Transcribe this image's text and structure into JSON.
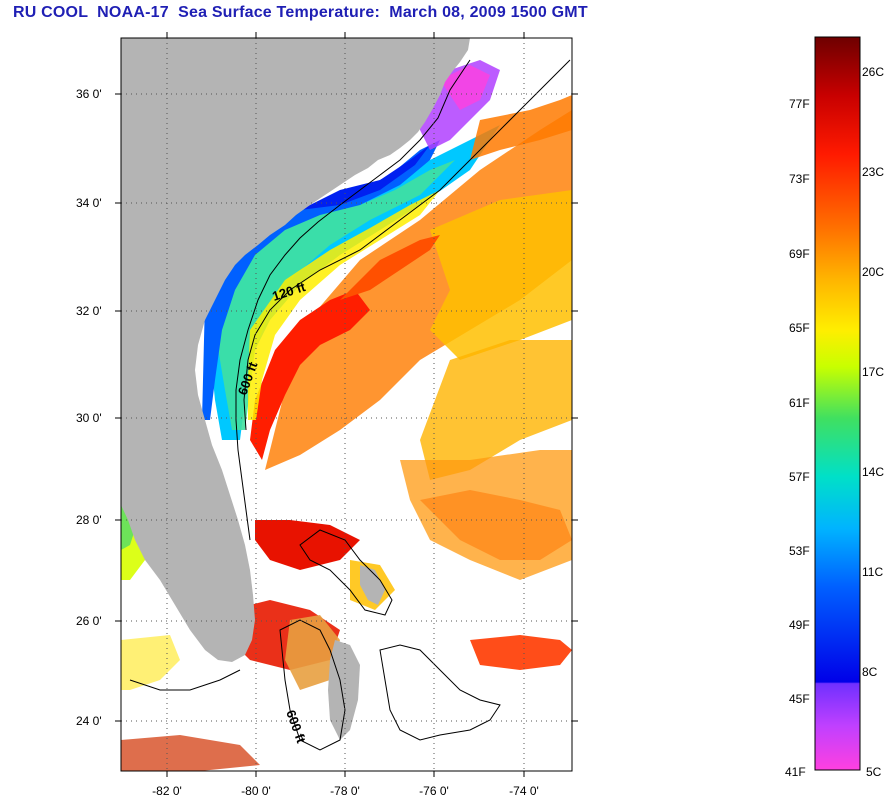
{
  "title": "RU COOL  NOAA-17  Sea Surface Temperature:  March 08, 2009 1500 GMT",
  "map": {
    "lat_labels": [
      "36 0'",
      "34 0'",
      "32 0'",
      "30 0'",
      "28 0'",
      "26 0'",
      "24 0'"
    ],
    "lon_labels": [
      "-82 0'",
      "-80 0'",
      "-78 0'",
      "-76 0'",
      "-74 0'"
    ],
    "contour_labels": [
      "120 ft",
      "600 ft",
      "600 ft"
    ],
    "land_color": "#b4b4b4",
    "no_data_color": "#ffffff"
  },
  "colorbar": {
    "fahrenheit_labels": [
      "77F",
      "73F",
      "69F",
      "65F",
      "61F",
      "57F",
      "53F",
      "49F",
      "45F",
      "41F"
    ],
    "celsius_labels": [
      "26C",
      "23C",
      "20C",
      "17C",
      "14C",
      "11C",
      "8C",
      "5C"
    ],
    "colors": [
      "#7a0000",
      "#d40000",
      "#ff2a00",
      "#ff7a00",
      "#ffb000",
      "#ffee00",
      "#c8ff00",
      "#50e040",
      "#00e0a0",
      "#00c8ff",
      "#0080ff",
      "#0020ff",
      "#0000e0",
      "#a040ff",
      "#ff40e0"
    ]
  }
}
